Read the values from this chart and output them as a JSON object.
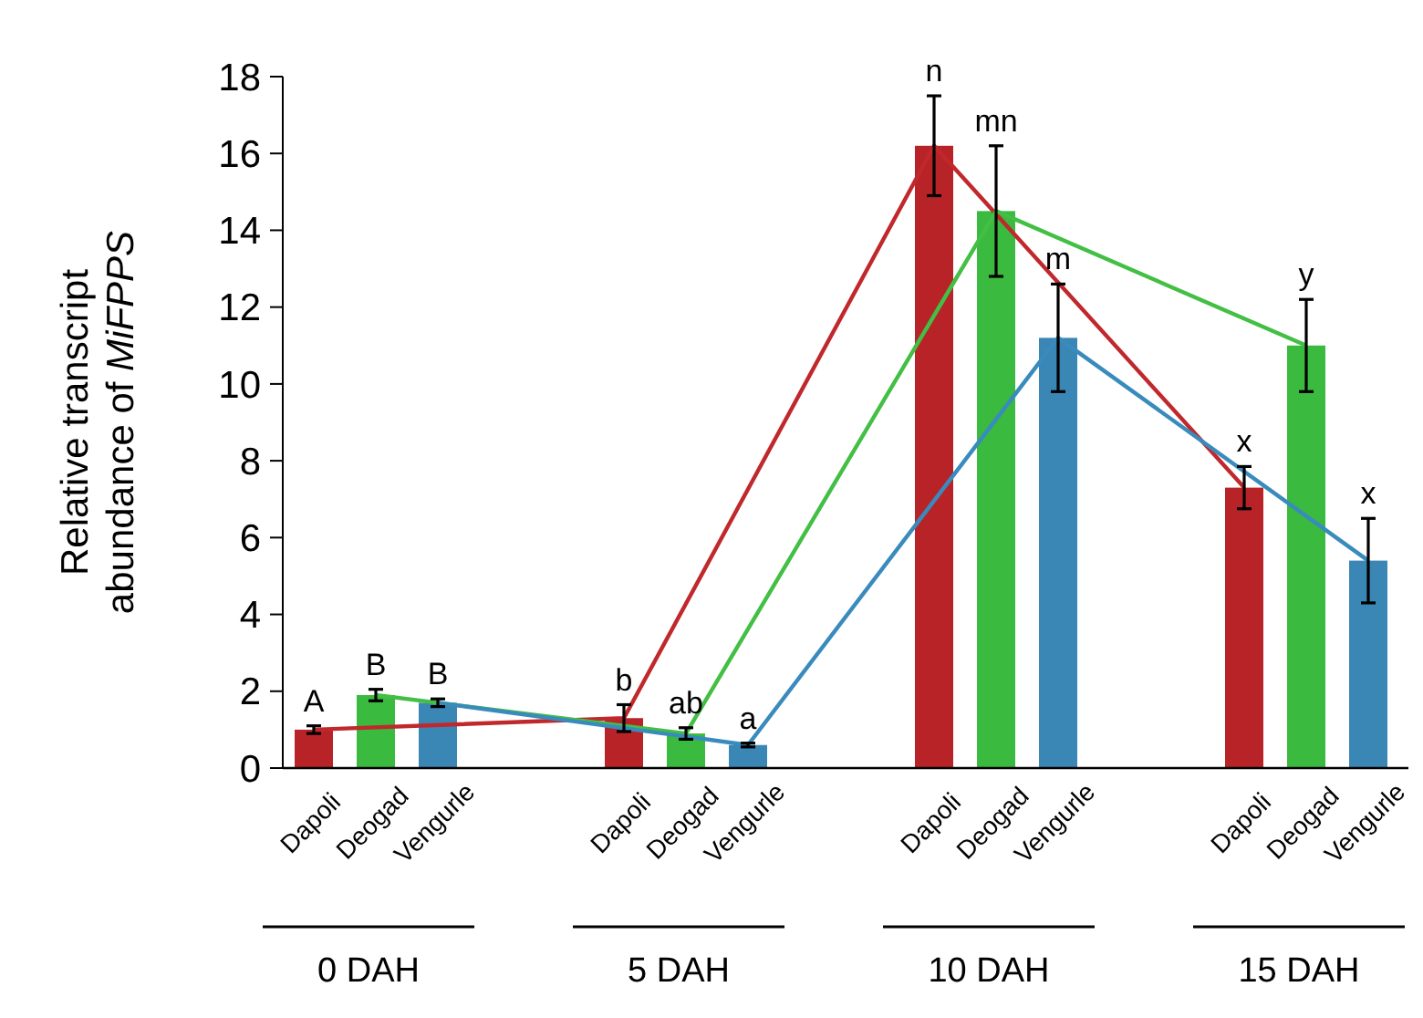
{
  "chart_data": {
    "type": "bar",
    "ylabel": "Relative transcript abundance of MiFPPS",
    "categories": [
      "Dapoli",
      "Deogad",
      "Vengurle",
      "Dapoli",
      "Deogad",
      "Vengurle",
      "Dapoli",
      "Deogad",
      "Vengurle",
      "Dapoli",
      "Deogad",
      "Vengurle"
    ],
    "series": [
      {
        "color": "#b82327",
        "values": [
          1.0,
          null,
          null,
          1.3,
          null,
          null,
          16.2,
          null,
          null,
          7.3,
          null,
          null
        ],
        "errors": [
          0.1,
          null,
          null,
          0.35,
          null,
          null,
          1.3,
          null,
          null,
          0.55,
          null,
          null
        ]
      },
      {
        "color": "#3aba3e",
        "values": [
          null,
          1.9,
          null,
          null,
          0.9,
          null,
          null,
          14.5,
          null,
          null,
          11.0,
          null
        ],
        "errors": [
          null,
          0.15,
          null,
          null,
          0.15,
          null,
          null,
          1.7,
          null,
          null,
          1.2,
          null
        ]
      },
      {
        "color": "#3a86b5",
        "values": [
          null,
          null,
          1.7,
          null,
          null,
          0.6,
          null,
          null,
          11.2,
          null,
          null,
          5.4
        ],
        "errors": [
          null,
          null,
          0.1,
          null,
          null,
          0.05,
          null,
          null,
          1.4,
          null,
          null,
          1.1
        ]
      },
      {
        "type": "line",
        "color": "#c0282c",
        "values": [
          1.0,
          null,
          null,
          1.3,
          null,
          null,
          16.2,
          null,
          null,
          7.3,
          null,
          null
        ]
      },
      {
        "type": "line",
        "color": "#42bf44",
        "values": [
          null,
          1.9,
          null,
          null,
          0.9,
          null,
          null,
          14.5,
          null,
          null,
          11.0,
          null
        ]
      },
      {
        "type": "line",
        "color": "#3a8bbd",
        "values": [
          null,
          null,
          1.7,
          null,
          null,
          0.6,
          null,
          null,
          11.2,
          null,
          null,
          5.4
        ]
      }
    ],
    "annotations": [
      "A",
      "B",
      "B",
      "b",
      "ab",
      "a",
      "n",
      "mn",
      "m",
      "x",
      "y",
      "x",
      "0 DAH",
      "5 DAH",
      "10 DAH",
      "15 DAH"
    ],
    "ylim": [
      0,
      18
    ],
    "yticks": [
      0,
      2,
      4,
      6,
      8,
      10,
      12,
      14,
      16,
      18
    ],
    "grid": false,
    "line_style": "solid"
  }
}
